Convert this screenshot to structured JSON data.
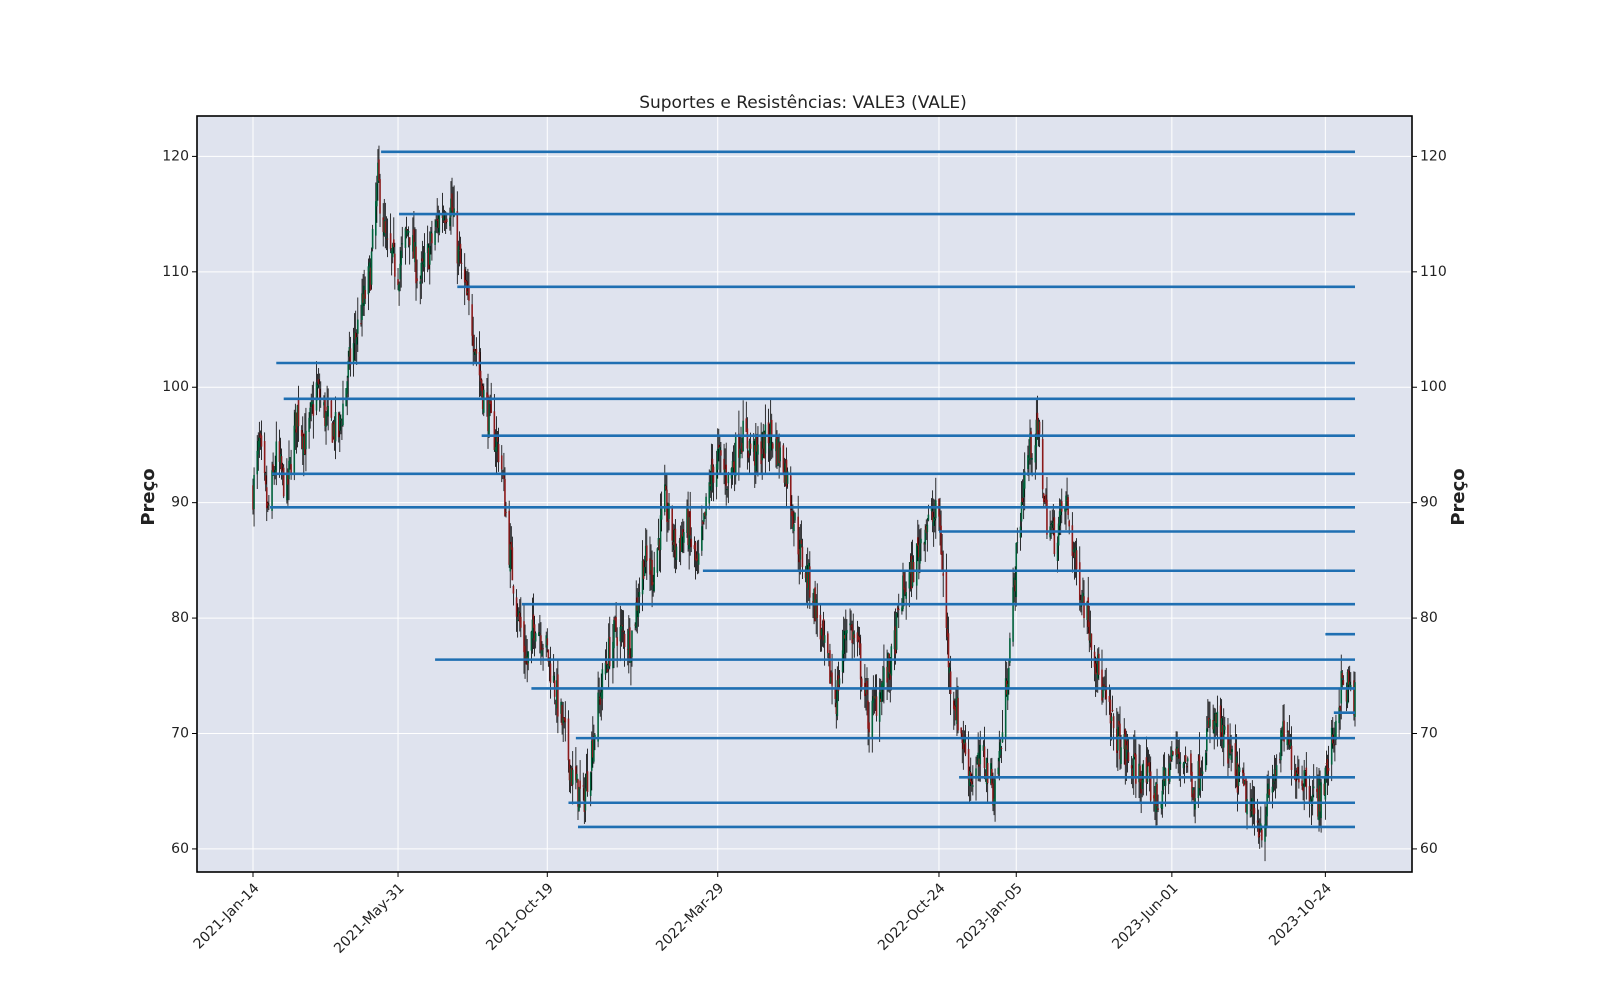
{
  "chart_data": {
    "type": "candlestick",
    "title": "Suportes e Resistências: VALE3 (VALE)",
    "ylabel": "Preço",
    "ylabel_right": "Preço",
    "xlabel": "",
    "ylim": [
      58,
      123.5
    ],
    "yticks": [
      60,
      70,
      80,
      90,
      100,
      110,
      120
    ],
    "ytick_labels": [
      "60",
      "70",
      "80",
      "90",
      "100",
      "110",
      "120"
    ],
    "x_range": [
      "2021-01-14",
      "2023-11-21"
    ],
    "xticks": [
      "2021-01-14",
      "2021-05-31",
      "2021-10-19",
      "2022-03-29",
      "2022-10-24",
      "2023-01-05",
      "2023-06-01",
      "2023-10-24"
    ],
    "xtick_labels": [
      "2021-Jan-14",
      "2021-May-31",
      "2021-Oct-19",
      "2022-Mar-29",
      "2022-Oct-24",
      "2023-Jan-05",
      "2023-Jun-01",
      "2023-10-24"
    ],
    "grid": true,
    "colors": {
      "up": "#00613a",
      "down": "#8b1a1a",
      "levels": "#1f6fb2",
      "plot_bg": "#dfe3ee"
    },
    "close_path": [
      [
        "2021-01-14",
        91
      ],
      [
        "2021-01-20",
        95
      ],
      [
        "2021-01-28",
        89
      ],
      [
        "2021-02-05",
        94
      ],
      [
        "2021-02-15",
        91
      ],
      [
        "2021-02-25",
        98
      ],
      [
        "2021-03-05",
        95
      ],
      [
        "2021-03-15",
        100
      ],
      [
        "2021-03-25",
        97
      ],
      [
        "2021-04-05",
        96
      ],
      [
        "2021-04-15",
        102
      ],
      [
        "2021-04-25",
        106
      ],
      [
        "2021-05-05",
        110
      ],
      [
        "2021-05-12",
        118
      ],
      [
        "2021-05-20",
        112
      ],
      [
        "2021-05-31",
        110
      ],
      [
        "2021-06-10",
        114
      ],
      [
        "2021-06-20",
        109
      ],
      [
        "2021-06-30",
        112
      ],
      [
        "2021-07-10",
        115
      ],
      [
        "2021-07-20",
        116
      ],
      [
        "2021-07-26",
        112
      ],
      [
        "2021-08-03",
        108
      ],
      [
        "2021-08-10",
        105
      ],
      [
        "2021-08-18",
        100
      ],
      [
        "2021-08-26",
        97
      ],
      [
        "2021-09-05",
        94
      ],
      [
        "2021-09-13",
        86
      ],
      [
        "2021-09-22",
        80
      ],
      [
        "2021-09-30",
        76
      ],
      [
        "2021-10-08",
        80
      ],
      [
        "2021-10-19",
        77
      ],
      [
        "2021-10-26",
        74
      ],
      [
        "2021-11-04",
        70
      ],
      [
        "2021-11-12",
        66
      ],
      [
        "2021-11-22",
        64
      ],
      [
        "2021-12-02",
        70
      ],
      [
        "2021-12-13",
        76
      ],
      [
        "2021-12-23",
        79
      ],
      [
        "2022-01-06",
        78
      ],
      [
        "2022-01-18",
        85
      ],
      [
        "2022-01-27",
        84
      ],
      [
        "2022-02-07",
        90
      ],
      [
        "2022-02-17",
        86
      ],
      [
        "2022-02-28",
        88
      ],
      [
        "2022-03-10",
        84
      ],
      [
        "2022-03-22",
        92
      ],
      [
        "2022-03-29",
        94
      ],
      [
        "2022-04-08",
        92
      ],
      [
        "2022-04-20",
        96
      ],
      [
        "2022-05-05",
        94
      ],
      [
        "2022-05-18",
        96
      ],
      [
        "2022-06-01",
        93
      ],
      [
        "2022-06-14",
        86
      ],
      [
        "2022-06-27",
        82
      ],
      [
        "2022-07-08",
        77
      ],
      [
        "2022-07-19",
        73
      ],
      [
        "2022-07-29",
        80
      ],
      [
        "2022-08-09",
        77
      ],
      [
        "2022-08-19",
        71
      ],
      [
        "2022-08-30",
        74
      ],
      [
        "2022-09-09",
        76
      ],
      [
        "2022-09-19",
        82
      ],
      [
        "2022-09-29",
        84
      ],
      [
        "2022-10-10",
        88
      ],
      [
        "2022-10-24",
        89
      ],
      [
        "2022-11-03",
        75
      ],
      [
        "2022-11-14",
        70
      ],
      [
        "2022-11-24",
        66
      ],
      [
        "2022-12-05",
        68
      ],
      [
        "2022-12-15",
        65
      ],
      [
        "2022-12-23",
        70
      ],
      [
        "2023-01-05",
        85
      ],
      [
        "2023-01-12",
        92
      ],
      [
        "2023-01-19",
        95
      ],
      [
        "2023-01-26",
        96
      ],
      [
        "2023-02-02",
        89
      ],
      [
        "2023-02-10",
        87
      ],
      [
        "2023-02-21",
        90
      ],
      [
        "2023-03-03",
        84
      ],
      [
        "2023-03-14",
        80
      ],
      [
        "2023-03-24",
        75
      ],
      [
        "2023-04-04",
        71
      ],
      [
        "2023-04-14",
        69
      ],
      [
        "2023-04-25",
        67
      ],
      [
        "2023-05-08",
        66
      ],
      [
        "2023-05-19",
        64
      ],
      [
        "2023-06-01",
        68
      ],
      [
        "2023-06-13",
        68
      ],
      [
        "2023-06-23",
        65
      ],
      [
        "2023-07-04",
        70
      ],
      [
        "2023-07-14",
        71
      ],
      [
        "2023-07-25",
        68
      ],
      [
        "2023-08-04",
        66
      ],
      [
        "2023-08-15",
        63
      ],
      [
        "2023-08-25",
        62
      ],
      [
        "2023-09-05",
        66
      ],
      [
        "2023-09-15",
        70
      ],
      [
        "2023-09-26",
        67
      ],
      [
        "2023-10-06",
        66
      ],
      [
        "2023-10-16",
        64
      ],
      [
        "2023-10-24",
        66
      ],
      [
        "2023-11-01",
        70
      ],
      [
        "2023-11-08",
        74
      ],
      [
        "2023-11-14",
        74
      ],
      [
        "2023-11-21",
        73
      ]
    ],
    "levels": [
      {
        "value": 120.4,
        "start": "2021-05-15"
      },
      {
        "value": 115.0,
        "start": "2021-06-01"
      },
      {
        "value": 108.7,
        "start": "2021-07-26"
      },
      {
        "value": 102.1,
        "start": "2021-02-05"
      },
      {
        "value": 99.0,
        "start": "2021-02-12"
      },
      {
        "value": 95.8,
        "start": "2021-08-18"
      },
      {
        "value": 92.5,
        "start": "2021-02-01"
      },
      {
        "value": 89.6,
        "start": "2021-01-30"
      },
      {
        "value": 87.5,
        "start": "2022-10-24"
      },
      {
        "value": 84.1,
        "start": "2022-03-15"
      },
      {
        "value": 81.2,
        "start": "2021-09-25"
      },
      {
        "value": 78.6,
        "start": "2023-10-24"
      },
      {
        "value": 76.4,
        "start": "2021-07-05"
      },
      {
        "value": 73.9,
        "start": "2021-10-04"
      },
      {
        "value": 71.8,
        "start": "2023-11-01"
      },
      {
        "value": 69.6,
        "start": "2021-11-15"
      },
      {
        "value": 66.2,
        "start": "2022-11-12"
      },
      {
        "value": 64.0,
        "start": "2021-11-08"
      },
      {
        "value": 61.9,
        "start": "2021-11-17"
      }
    ]
  }
}
